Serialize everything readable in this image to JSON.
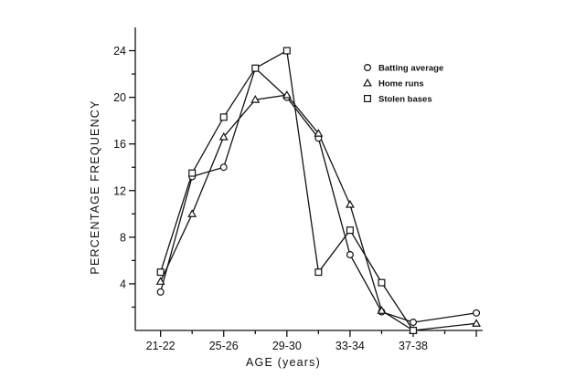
{
  "chart_data": {
    "type": "line",
    "xlabel": "AGE (years)",
    "ylabel": "PERCENTAGE FREQUENCY",
    "x_tick_labels": [
      "21-22",
      "25-26",
      "29-30",
      "33-34",
      "37-38"
    ],
    "y_ticks": [
      4,
      8,
      12,
      16,
      20,
      24
    ],
    "ylim": [
      0,
      26
    ],
    "x_index_range": [
      -0.8,
      10.2
    ],
    "grid": false,
    "legend_position": "top-right",
    "series": [
      {
        "name": "Batting average",
        "marker": "circle",
        "x": [
          0,
          1,
          2,
          3,
          4,
          5,
          6,
          7,
          8,
          9,
          10
        ],
        "y": [
          3.3,
          13.2,
          14.0,
          22.5,
          20.0,
          16.5,
          6.5,
          1.6,
          0.7,
          null,
          1.5
        ]
      },
      {
        "name": "Home runs",
        "marker": "triangle",
        "x": [
          0,
          1,
          2,
          3,
          4,
          5,
          6,
          7,
          8,
          9,
          10
        ],
        "y": [
          4.2,
          10.0,
          16.6,
          19.8,
          20.2,
          16.9,
          10.8,
          1.7,
          0.0,
          null,
          0.6
        ]
      },
      {
        "name": "Stolen bases",
        "marker": "square",
        "x": [
          0,
          1,
          2,
          3,
          4,
          5,
          6,
          7,
          8
        ],
        "y": [
          5.0,
          13.5,
          18.3,
          22.5,
          24.0,
          5.0,
          8.6,
          4.1,
          0.0
        ]
      }
    ]
  }
}
